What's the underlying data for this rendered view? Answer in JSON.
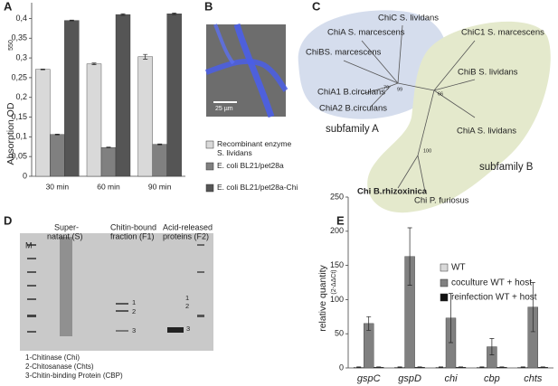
{
  "letters": [
    "A",
    "B",
    "C",
    "D",
    "E"
  ],
  "chart_data": [
    {
      "type": "bar",
      "ylabel": "Absorption OD",
      "ylabel_sub": "550",
      "categories": [
        "30 min",
        "60 min",
        "90 min"
      ],
      "series": [
        {
          "name": "Recombinant enzyme S. lividans",
          "color": "#d9d9d9",
          "values": [
            0.271,
            0.285,
            0.303
          ],
          "errors": [
            0.001,
            0.002,
            0.006
          ]
        },
        {
          "name": "E. coli BL21/pet28a",
          "color": "#808080",
          "values": [
            0.106,
            0.073,
            0.081
          ],
          "errors": [
            0.001,
            0.001,
            0.001
          ]
        },
        {
          "name": "E. coli BL21/pet28a-Chi",
          "color": "#555555",
          "values": [
            0.395,
            0.41,
            0.412
          ],
          "errors": [
            0.001,
            0.002,
            0.002
          ]
        }
      ],
      "ylim": [
        0,
        0.44
      ],
      "yticks": [
        0,
        {
          "value": 0.05,
          "label": "0,05"
        },
        {
          "value": 0.1,
          "label": "0,1"
        },
        {
          "value": 0.15,
          "label": "0,15"
        },
        {
          "value": 0.2,
          "label": "0,2"
        },
        {
          "value": 0.25,
          "label": "0,25"
        },
        {
          "value": 0.3,
          "label": "0,3"
        },
        {
          "value": 0.35,
          "label": "0,35"
        },
        {
          "value": 0.4,
          "label": "0,4"
        }
      ],
      "legend": "right"
    },
    {
      "type": "bar",
      "ylabel": "relative quantity",
      "ylabel_sub": "(2-ΔΔCt)",
      "categories": [
        "gspC",
        "gspD",
        "chi",
        "cbp",
        "chts"
      ],
      "series": [
        {
          "name": "WT",
          "color": "#d9d9d9",
          "values": [
            1,
            1,
            1,
            1,
            1
          ],
          "errors": [
            0.5,
            0.5,
            0.5,
            0.5,
            0.5
          ]
        },
        {
          "name": "coculture WT + host",
          "color": "#808080",
          "values": [
            65,
            163,
            73,
            31,
            89
          ],
          "errors": [
            10,
            42,
            36,
            12,
            36
          ]
        },
        {
          "name": "reinfection WT + host",
          "color": "#111111",
          "values": [
            1,
            1,
            1,
            1,
            1
          ],
          "errors": [
            0.5,
            0.5,
            0.5,
            0.5,
            0.5
          ]
        }
      ],
      "ylim": [
        0,
        250
      ],
      "yticks": [
        0,
        50,
        100,
        150,
        200,
        250
      ],
      "legend": "top-right"
    }
  ],
  "panel_b": {
    "scale_label": "25 µm"
  },
  "panel_c": {
    "leaves": [
      "ChiC S. lividans",
      "ChiA S. marcescens",
      "ChiBS. marcescens",
      "ChiA1 B.circulans",
      "ChiA2 B.circulans",
      "ChiC1 S. marcescens",
      "ChiB S. lividans",
      "ChiA S. lividans",
      "Chi B.rhizoxinica",
      "Chi P. furiosus"
    ],
    "bootstrap": [
      79,
      99,
      66,
      100
    ],
    "groups": [
      "subfamily A",
      "subfamily B"
    ]
  },
  "panel_d": {
    "lanes": [
      "M",
      "Super-",
      "natant (S)",
      "Chitin-bound",
      "fraction (F1)",
      "Acid-released",
      "proteins (F2)"
    ],
    "bands": [
      "1",
      "2",
      "3",
      "1",
      "2",
      "3"
    ],
    "legend": [
      "1-Chitinase (Chi)",
      "2-Chitosanase (Chts)",
      "3-Chitin-binding Protein (CBP)"
    ]
  }
}
